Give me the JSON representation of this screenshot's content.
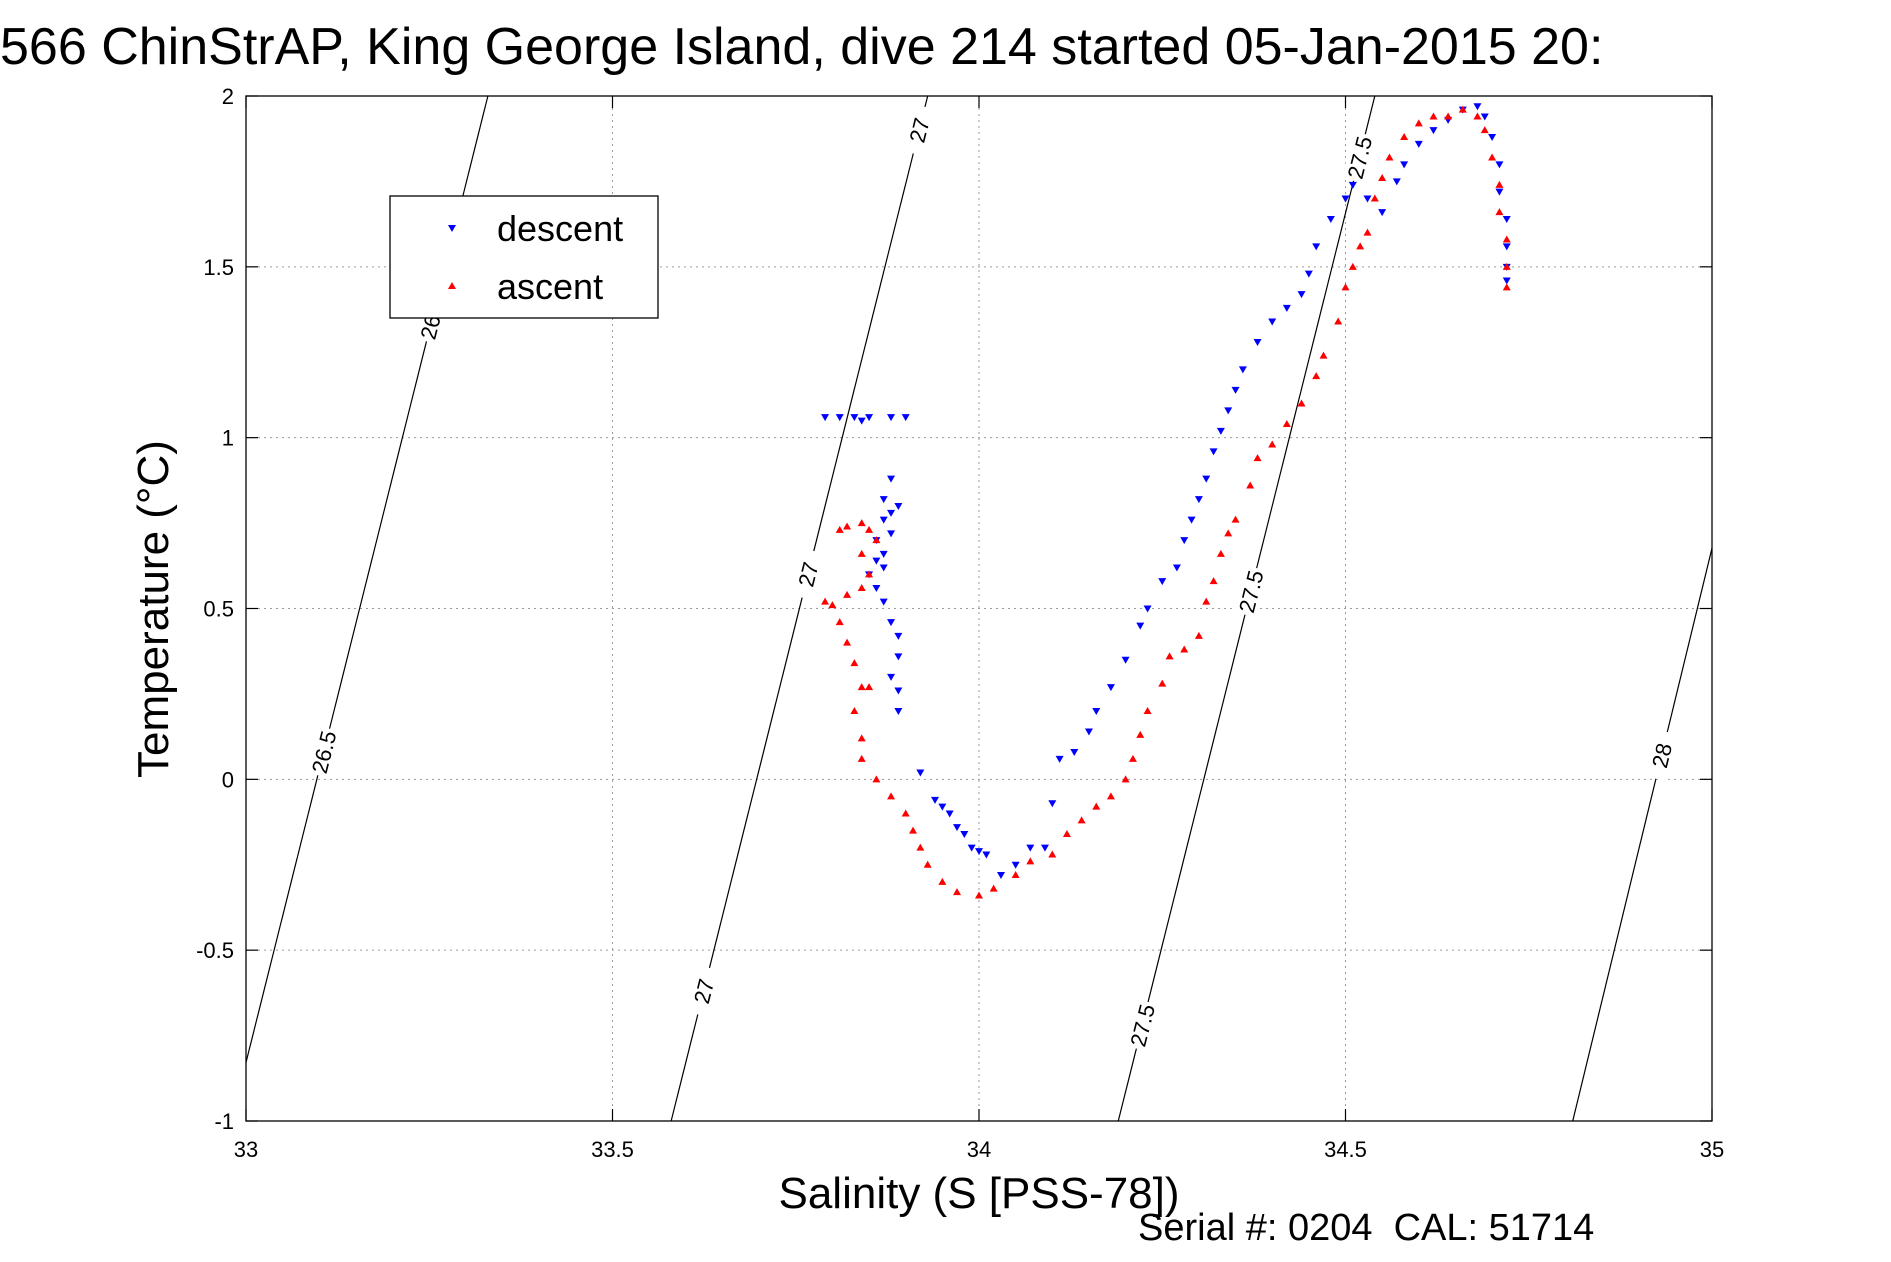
{
  "chart_data": {
    "type": "scatter",
    "title": "566 ChinStrAP, King George Island, dive 214 started 05-Jan-2015 20:",
    "xlabel": "Salinity (S [PSS-78])",
    "ylabel": "Temperature (°C)",
    "footer": "Serial #: 0204  CAL: 51714",
    "xlim": [
      33,
      35
    ],
    "ylim": [
      -1,
      2
    ],
    "xticks": [
      "33",
      "33.5",
      "34",
      "34.5",
      "35"
    ],
    "yticks": [
      "-1",
      "-0.5",
      "0",
      "0.5",
      "1",
      "1.5",
      "2"
    ],
    "grid": true,
    "legend_position": "top-left",
    "colors": {
      "descent": "#0000ff",
      "ascent": "#ff0000",
      "isopycnal": "#000000"
    },
    "series": [
      {
        "name": "descent",
        "marker": "triangle-down",
        "points": [
          [
            33.79,
            1.06
          ],
          [
            33.81,
            1.06
          ],
          [
            33.83,
            1.06
          ],
          [
            33.84,
            1.05
          ],
          [
            33.85,
            1.06
          ],
          [
            33.88,
            1.06
          ],
          [
            33.9,
            1.06
          ],
          [
            33.88,
            0.88
          ],
          [
            33.87,
            0.82
          ],
          [
            33.89,
            0.8
          ],
          [
            33.88,
            0.78
          ],
          [
            33.87,
            0.76
          ],
          [
            33.88,
            0.72
          ],
          [
            33.86,
            0.7
          ],
          [
            33.87,
            0.66
          ],
          [
            33.86,
            0.64
          ],
          [
            33.87,
            0.62
          ],
          [
            33.85,
            0.6
          ],
          [
            33.86,
            0.56
          ],
          [
            33.87,
            0.52
          ],
          [
            33.88,
            0.46
          ],
          [
            33.89,
            0.42
          ],
          [
            33.89,
            0.36
          ],
          [
            33.88,
            0.3
          ],
          [
            33.89,
            0.26
          ],
          [
            33.89,
            0.2
          ],
          [
            33.92,
            0.02
          ],
          [
            33.94,
            -0.06
          ],
          [
            33.95,
            -0.08
          ],
          [
            33.96,
            -0.1
          ],
          [
            33.97,
            -0.14
          ],
          [
            33.98,
            -0.16
          ],
          [
            33.99,
            -0.2
          ],
          [
            34.0,
            -0.21
          ],
          [
            34.01,
            -0.22
          ],
          [
            34.03,
            -0.28
          ],
          [
            34.05,
            -0.25
          ],
          [
            34.07,
            -0.2
          ],
          [
            34.09,
            -0.2
          ],
          [
            34.1,
            -0.07
          ],
          [
            34.11,
            0.06
          ],
          [
            34.13,
            0.08
          ],
          [
            34.15,
            0.14
          ],
          [
            34.16,
            0.2
          ],
          [
            34.18,
            0.27
          ],
          [
            34.2,
            0.35
          ],
          [
            34.22,
            0.45
          ],
          [
            34.23,
            0.5
          ],
          [
            34.25,
            0.58
          ],
          [
            34.27,
            0.62
          ],
          [
            34.28,
            0.7
          ],
          [
            34.29,
            0.76
          ],
          [
            34.3,
            0.82
          ],
          [
            34.31,
            0.88
          ],
          [
            34.32,
            0.96
          ],
          [
            34.33,
            1.02
          ],
          [
            34.34,
            1.08
          ],
          [
            34.35,
            1.14
          ],
          [
            34.36,
            1.2
          ],
          [
            34.38,
            1.28
          ],
          [
            34.4,
            1.34
          ],
          [
            34.42,
            1.38
          ],
          [
            34.44,
            1.42
          ],
          [
            34.45,
            1.48
          ],
          [
            34.46,
            1.56
          ],
          [
            34.48,
            1.64
          ],
          [
            34.5,
            1.7
          ],
          [
            34.51,
            1.74
          ],
          [
            34.53,
            1.7
          ],
          [
            34.55,
            1.66
          ],
          [
            34.57,
            1.75
          ],
          [
            34.58,
            1.8
          ],
          [
            34.6,
            1.86
          ],
          [
            34.62,
            1.9
          ],
          [
            34.64,
            1.93
          ],
          [
            34.66,
            1.96
          ],
          [
            34.68,
            1.97
          ],
          [
            34.69,
            1.94
          ],
          [
            34.7,
            1.88
          ],
          [
            34.71,
            1.8
          ],
          [
            34.71,
            1.72
          ],
          [
            34.72,
            1.64
          ],
          [
            34.72,
            1.56
          ],
          [
            34.72,
            1.5
          ],
          [
            34.72,
            1.46
          ]
        ]
      },
      {
        "name": "ascent",
        "marker": "triangle-up",
        "points": [
          [
            33.81,
            0.73
          ],
          [
            33.82,
            0.74
          ],
          [
            33.84,
            0.75
          ],
          [
            33.85,
            0.73
          ],
          [
            33.86,
            0.7
          ],
          [
            33.84,
            0.66
          ],
          [
            33.85,
            0.6
          ],
          [
            33.84,
            0.56
          ],
          [
            33.82,
            0.54
          ],
          [
            33.8,
            0.51
          ],
          [
            33.79,
            0.52
          ],
          [
            33.81,
            0.46
          ],
          [
            33.82,
            0.4
          ],
          [
            33.83,
            0.34
          ],
          [
            33.84,
            0.27
          ],
          [
            33.85,
            0.27
          ],
          [
            33.83,
            0.2
          ],
          [
            33.84,
            0.12
          ],
          [
            33.84,
            0.06
          ],
          [
            33.86,
            0.0
          ],
          [
            33.88,
            -0.05
          ],
          [
            33.9,
            -0.1
          ],
          [
            33.91,
            -0.15
          ],
          [
            33.92,
            -0.2
          ],
          [
            33.93,
            -0.25
          ],
          [
            33.95,
            -0.3
          ],
          [
            33.97,
            -0.33
          ],
          [
            34.0,
            -0.34
          ],
          [
            34.02,
            -0.32
          ],
          [
            34.05,
            -0.28
          ],
          [
            34.07,
            -0.24
          ],
          [
            34.1,
            -0.22
          ],
          [
            34.12,
            -0.16
          ],
          [
            34.14,
            -0.12
          ],
          [
            34.16,
            -0.08
          ],
          [
            34.18,
            -0.05
          ],
          [
            34.2,
            0.0
          ],
          [
            34.21,
            0.06
          ],
          [
            34.22,
            0.13
          ],
          [
            34.23,
            0.2
          ],
          [
            34.25,
            0.28
          ],
          [
            34.26,
            0.36
          ],
          [
            34.28,
            0.38
          ],
          [
            34.3,
            0.42
          ],
          [
            34.31,
            0.52
          ],
          [
            34.32,
            0.58
          ],
          [
            34.33,
            0.66
          ],
          [
            34.34,
            0.72
          ],
          [
            34.35,
            0.76
          ],
          [
            34.37,
            0.86
          ],
          [
            34.38,
            0.94
          ],
          [
            34.4,
            0.98
          ],
          [
            34.42,
            1.04
          ],
          [
            34.44,
            1.1
          ],
          [
            34.46,
            1.18
          ],
          [
            34.47,
            1.24
          ],
          [
            34.49,
            1.34
          ],
          [
            34.5,
            1.44
          ],
          [
            34.51,
            1.5
          ],
          [
            34.52,
            1.56
          ],
          [
            34.53,
            1.6
          ],
          [
            34.54,
            1.7
          ],
          [
            34.55,
            1.76
          ],
          [
            34.56,
            1.82
          ],
          [
            34.58,
            1.88
          ],
          [
            34.6,
            1.92
          ],
          [
            34.62,
            1.94
          ],
          [
            34.64,
            1.94
          ],
          [
            34.66,
            1.96
          ],
          [
            34.68,
            1.94
          ],
          [
            34.69,
            1.9
          ],
          [
            34.7,
            1.82
          ],
          [
            34.71,
            1.74
          ],
          [
            34.71,
            1.66
          ],
          [
            34.72,
            1.58
          ],
          [
            34.72,
            1.5
          ],
          [
            34.72,
            1.44
          ]
        ]
      }
    ],
    "isopycnals": [
      {
        "label": "26.5",
        "x_at_ymin": 32.98,
        "x_at_ymax": 33.33,
        "label_at_y": [
          1.35,
          0.08
        ]
      },
      {
        "label": "27",
        "x_at_ymin": 33.58,
        "x_at_ymax": 33.93,
        "label_at_y": [
          1.9,
          0.6,
          -0.62
        ]
      },
      {
        "label": "27.5",
        "x_at_ymin": 34.19,
        "x_at_ymax": 34.54,
        "label_at_y": [
          1.82,
          0.55,
          -0.72
        ]
      },
      {
        "label": "28",
        "x_at_ymin": 34.81,
        "x_at_ymax": 35.15,
        "label_at_y": [
          1.3,
          0.07
        ]
      }
    ]
  }
}
